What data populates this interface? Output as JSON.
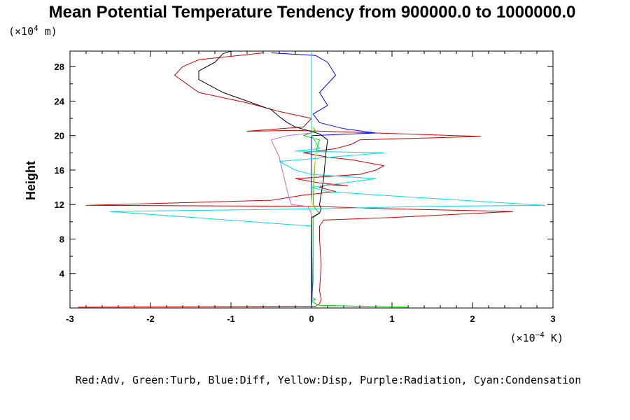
{
  "chart_data": {
    "type": "line",
    "title": "Mean Potential Temperature Tendency from 900000.0 to 1000000.0",
    "y_unit_prefix": "(×10",
    "y_unit_exp": "4",
    "y_unit_suffix": " m)",
    "x_unit_prefix": "(×10",
    "x_unit_exp": "−4",
    "x_unit_suffix": " K)",
    "ylabel": "Height",
    "xlim": [
      -3,
      3
    ],
    "ylim": [
      0,
      29.8
    ],
    "x_ticks": [
      -3,
      -2,
      -1,
      0,
      1,
      2,
      3
    ],
    "x_tick_labels": [
      "-3",
      "-2",
      "-1",
      "0",
      "1",
      "2",
      "3"
    ],
    "y_ticks": [
      4,
      8,
      12,
      16,
      20,
      24,
      28
    ],
    "y_tick_labels": [
      "4",
      "8",
      "12",
      "16",
      "20",
      "24",
      "28"
    ],
    "legend_text": "Red:Adv, Green:Turb, Blue:Diff, Yellow:Disp, Purple:Radiation, Cyan:Condensation",
    "legend_placement": "bottom",
    "grid": false,
    "series": [
      {
        "color": "#cc0000",
        "points": [
          [
            -2.9,
            0.1
          ],
          [
            0.05,
            0.2
          ],
          [
            0.1,
            0.5
          ],
          [
            0.12,
            1
          ],
          [
            0.1,
            2
          ],
          [
            0.12,
            5
          ],
          [
            0.1,
            8
          ],
          [
            0.1,
            9.5
          ],
          [
            0.15,
            10.2
          ],
          [
            1.0,
            10.5
          ],
          [
            2.5,
            11.2
          ],
          [
            1.0,
            11.5
          ],
          [
            0.0,
            11.8
          ],
          [
            -2.8,
            11.9
          ],
          [
            -0.5,
            12.5
          ],
          [
            -0.1,
            13.1
          ],
          [
            0.3,
            13.5
          ],
          [
            0.1,
            14.0
          ],
          [
            0.2,
            14.3
          ],
          [
            0.45,
            14.2
          ],
          [
            0.1,
            14.5
          ],
          [
            -0.2,
            15.0
          ],
          [
            0.6,
            15.5
          ],
          [
            0.8,
            16.0
          ],
          [
            0.9,
            16.5
          ],
          [
            0.5,
            17.2
          ],
          [
            0.2,
            17.5
          ],
          [
            -0.1,
            18.0
          ],
          [
            0.3,
            18.5
          ],
          [
            0.5,
            19.0
          ],
          [
            0.6,
            19.5
          ],
          [
            2.1,
            19.9
          ],
          [
            0.5,
            20.4
          ],
          [
            -0.2,
            20.6
          ],
          [
            -0.8,
            20.5
          ],
          [
            -0.1,
            21.0
          ],
          [
            0.0,
            22.0
          ],
          [
            -0.4,
            22.8
          ],
          [
            -0.8,
            23.8
          ],
          [
            -1.4,
            25.0
          ],
          [
            -1.7,
            27.0
          ],
          [
            -1.6,
            28.0
          ],
          [
            -1.4,
            28.8
          ],
          [
            -0.9,
            29.3
          ],
          [
            -0.6,
            29.6
          ]
        ]
      },
      {
        "color": "#00cc00",
        "points": [
          [
            1.2,
            0.1
          ],
          [
            0.1,
            0.3
          ],
          [
            0.05,
            0.5
          ],
          [
            0.0,
            0.8
          ],
          [
            0.05,
            1.0
          ],
          [
            0.0,
            1.2
          ],
          [
            0.02,
            3
          ],
          [
            0.02,
            10.5
          ],
          [
            0.1,
            11.0
          ],
          [
            0.05,
            11.5
          ],
          [
            0.02,
            12
          ],
          [
            0.03,
            15
          ],
          [
            0.05,
            18
          ],
          [
            0.1,
            19.5
          ],
          [
            -0.1,
            20.0
          ],
          [
            0.05,
            20.5
          ],
          [
            0.02,
            21
          ]
        ]
      },
      {
        "color": "#0000ff",
        "points": [
          [
            0.0,
            0.1
          ],
          [
            0.01,
            2
          ],
          [
            0.0,
            10.5
          ],
          [
            0.0,
            20.0
          ],
          [
            0.8,
            20.3
          ],
          [
            0.4,
            20.8
          ],
          [
            0.1,
            21.5
          ],
          [
            0.02,
            22.5
          ],
          [
            0.2,
            23.5
          ],
          [
            0.1,
            25
          ],
          [
            0.3,
            27
          ],
          [
            0.2,
            28.5
          ],
          [
            0.05,
            29.3
          ],
          [
            -0.5,
            29.6
          ]
        ]
      },
      {
        "color": "#ffff00",
        "points": [
          [
            0.0,
            0.1
          ],
          [
            0.0,
            12.0
          ],
          [
            0.02,
            15.0
          ],
          [
            0.05,
            18.0
          ],
          [
            0.05,
            19.5
          ],
          [
            0.0,
            20.0
          ],
          [
            0.02,
            21.0
          ]
        ]
      },
      {
        "color": "#cc66cc",
        "points": [
          [
            0.0,
            0.1
          ],
          [
            0.0,
            11.0
          ],
          [
            -0.05,
            11.8
          ],
          [
            -0.25,
            12.0
          ],
          [
            -0.3,
            13.5
          ],
          [
            -0.35,
            15.5
          ],
          [
            -0.4,
            17.5
          ],
          [
            -0.5,
            19.5
          ],
          [
            -0.3,
            20.0
          ],
          [
            0.0,
            20.3
          ]
        ]
      },
      {
        "color": "#00dddd",
        "points": [
          [
            0.0,
            0.1
          ],
          [
            0.0,
            9.5
          ],
          [
            -2.5,
            11.2
          ],
          [
            0.0,
            11.5
          ],
          [
            1.5,
            11.8
          ],
          [
            2.9,
            11.9
          ],
          [
            1.0,
            13.0
          ],
          [
            0.2,
            13.5
          ],
          [
            0.0,
            14.0
          ],
          [
            0.8,
            15.0
          ],
          [
            0.0,
            15.5
          ],
          [
            -0.2,
            16.0
          ],
          [
            -0.4,
            17.0
          ],
          [
            0.9,
            18.0
          ],
          [
            -0.2,
            18.2
          ],
          [
            0.1,
            18.5
          ],
          [
            0.0,
            20.0
          ],
          [
            0.0,
            29.8
          ]
        ]
      },
      {
        "color": "#000000",
        "points": [
          [
            0.0,
            0.1
          ],
          [
            0.0,
            10.5
          ],
          [
            0.1,
            11.0
          ],
          [
            0.12,
            11.5
          ],
          [
            0.1,
            12.0
          ],
          [
            0.15,
            15.0
          ],
          [
            0.18,
            18.0
          ],
          [
            0.2,
            19.5
          ],
          [
            0.1,
            20.2
          ],
          [
            -0.2,
            21.0
          ],
          [
            -0.3,
            21.5
          ],
          [
            -0.4,
            22.2
          ],
          [
            -0.5,
            23.0
          ],
          [
            -0.8,
            24.0
          ],
          [
            -1.1,
            25.0
          ],
          [
            -1.4,
            26.5
          ],
          [
            -1.4,
            27.5
          ],
          [
            -1.2,
            28.5
          ],
          [
            -1.1,
            29.5
          ],
          [
            -1.0,
            29.8
          ]
        ]
      }
    ]
  }
}
